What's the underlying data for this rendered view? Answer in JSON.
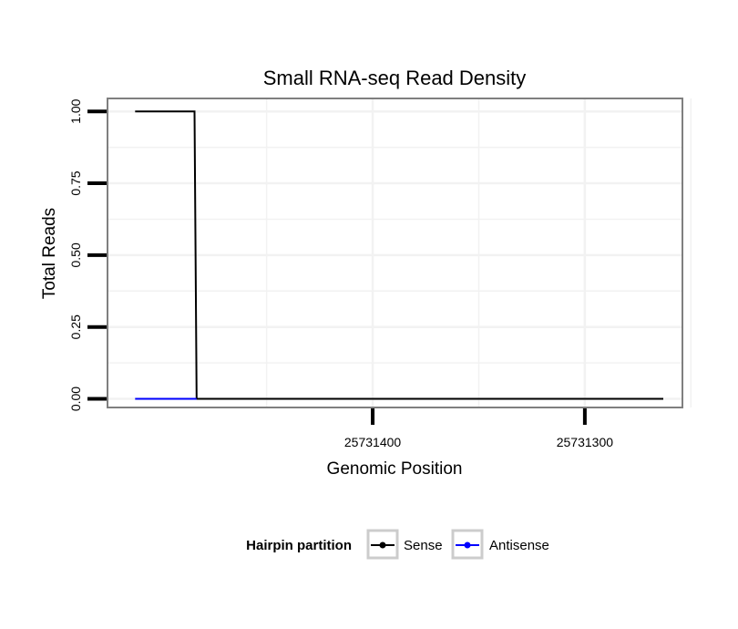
{
  "chart_data": {
    "type": "line",
    "title": "Small RNA-seq Read Density",
    "xlabel": "Genomic Position",
    "ylabel": "Total Reads",
    "x_reversed": true,
    "xlim": [
      25731525,
      25731254
    ],
    "ylim": [
      -0.03,
      1.045
    ],
    "x_ticks": [
      25731400,
      25731300
    ],
    "x_tick_labels": [
      "25731400",
      "25731300"
    ],
    "x_minor_grid": [
      25731450,
      25731350,
      25731250
    ],
    "y_ticks": [
      0,
      0.25,
      0.5,
      0.75,
      1
    ],
    "y_tick_labels": [
      "0.00",
      "0.25",
      "0.50",
      "0.75",
      "1.00"
    ],
    "grid": true,
    "legend": {
      "title": "Hairpin partition",
      "placement": "bottom",
      "entries": [
        "Sense",
        "Antisense"
      ]
    },
    "series": [
      {
        "name": "Sense",
        "color": "#000000",
        "x": [
          25731512,
          25731484,
          25731483,
          25731263
        ],
        "y": [
          1,
          1,
          0,
          0
        ]
      },
      {
        "name": "Antisense",
        "color": "#0000ff",
        "x": [
          25731512,
          25731483
        ],
        "y": [
          0,
          0
        ]
      }
    ]
  }
}
